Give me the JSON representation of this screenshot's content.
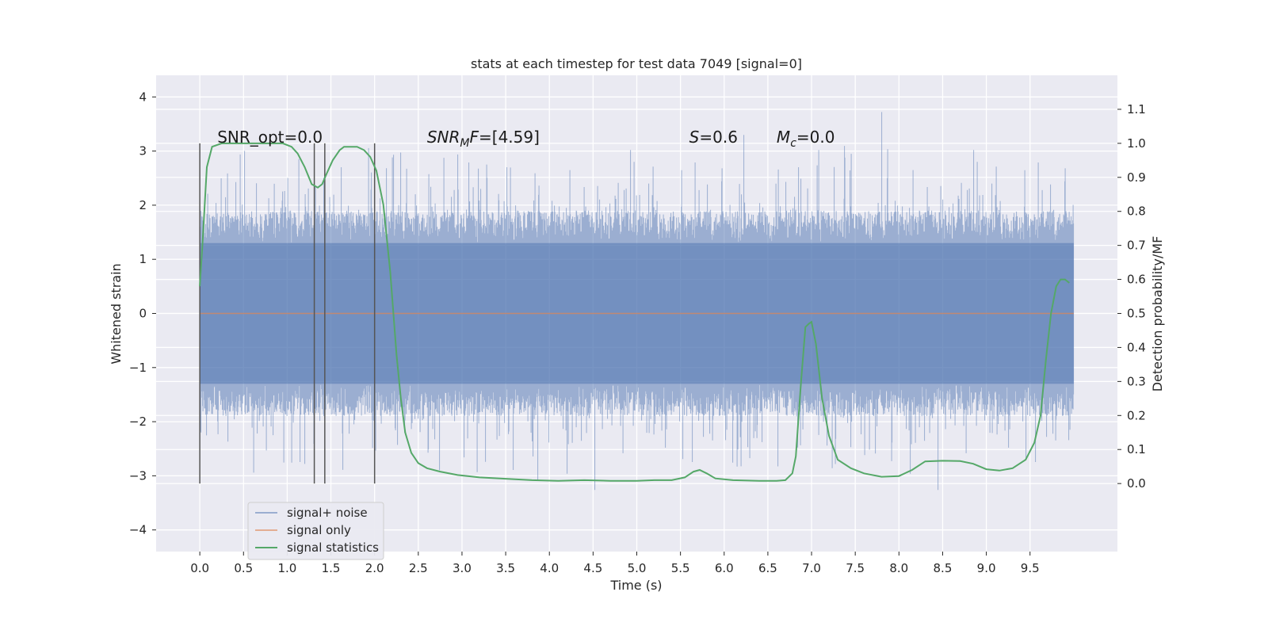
{
  "chart_data": {
    "type": "line",
    "title": "stats at each timestep for test data 7049 [signal=0]",
    "xlabel": "Time (s)",
    "ylabel_left": "Whitened strain",
    "ylabel_right": "Detection probability/MF",
    "xlim": [
      -0.5,
      10.5
    ],
    "ylim_left": [
      -4.4,
      4.4
    ],
    "ylim_right": [
      -0.2,
      1.2
    ],
    "xticks": [
      "0.0",
      "0.5",
      "1.0",
      "1.5",
      "2.0",
      "2.5",
      "3.0",
      "3.5",
      "4.0",
      "4.5",
      "5.0",
      "5.5",
      "6.0",
      "6.5",
      "7.0",
      "7.5",
      "8.0",
      "8.5",
      "9.0",
      "9.5"
    ],
    "xtick_values": [
      0.0,
      0.5,
      1.0,
      1.5,
      2.0,
      2.5,
      3.0,
      3.5,
      4.0,
      4.5,
      5.0,
      5.5,
      6.0,
      6.5,
      7.0,
      7.5,
      8.0,
      8.5,
      9.0,
      9.5
    ],
    "yticks_left": [
      "4",
      "3",
      "2",
      "1",
      "0",
      "−1",
      "−2",
      "−3",
      "−4"
    ],
    "ytick_values_left": [
      4,
      3,
      2,
      1,
      0,
      -1,
      -2,
      -3,
      -4
    ],
    "yticks_right": [
      "1.1",
      "1.0",
      "0.9",
      "0.8",
      "0.7",
      "0.6",
      "0.5",
      "0.4",
      "0.3",
      "0.2",
      "0.1",
      "0.0"
    ],
    "ytick_values_right": [
      1.1,
      1.0,
      0.9,
      0.8,
      0.7,
      0.6,
      0.5,
      0.4,
      0.3,
      0.2,
      0.1,
      0.0
    ],
    "grid": true,
    "legend_position": "lower-left",
    "series": [
      {
        "name": "signal+ noise",
        "color": "#4c72b0",
        "description": "whitened noise, approx. within [-2.5, 3] strain, 0 to 10 s",
        "x_range": [
          0.0,
          10.0
        ]
      },
      {
        "name": "signal only",
        "color": "#dd8452",
        "x": [
          0.0,
          10.0
        ],
        "values": [
          0.0,
          0.0
        ]
      },
      {
        "name": "signal statistics",
        "color": "#55a868",
        "x": [
          0.0,
          0.03,
          0.08,
          0.14,
          0.25,
          0.4,
          0.6,
          0.8,
          0.95,
          1.05,
          1.12,
          1.2,
          1.28,
          1.35,
          1.4,
          1.45,
          1.52,
          1.6,
          1.65,
          1.72,
          1.8,
          1.88,
          1.95,
          2.02,
          2.1,
          2.18,
          2.25,
          2.3,
          2.35,
          2.42,
          2.5,
          2.6,
          2.75,
          2.95,
          3.2,
          3.5,
          3.8,
          4.1,
          4.4,
          4.7,
          5.0,
          5.2,
          5.4,
          5.55,
          5.65,
          5.72,
          5.8,
          5.9,
          6.1,
          6.4,
          6.6,
          6.7,
          6.78,
          6.82,
          6.88,
          6.93,
          6.97,
          7.0,
          7.05,
          7.12,
          7.2,
          7.3,
          7.45,
          7.6,
          7.8,
          8.0,
          8.15,
          8.3,
          8.5,
          8.7,
          8.85,
          9.0,
          9.15,
          9.3,
          9.45,
          9.55,
          9.62,
          9.68,
          9.74,
          9.8,
          9.85,
          9.9,
          9.95
        ],
        "values": [
          0.58,
          0.7,
          0.93,
          0.99,
          1.0,
          1.0,
          1.0,
          1.0,
          1.0,
          0.99,
          0.97,
          0.93,
          0.88,
          0.87,
          0.88,
          0.91,
          0.95,
          0.98,
          0.99,
          0.99,
          0.99,
          0.98,
          0.96,
          0.92,
          0.82,
          0.62,
          0.38,
          0.25,
          0.15,
          0.09,
          0.06,
          0.045,
          0.035,
          0.025,
          0.018,
          0.014,
          0.01,
          0.008,
          0.01,
          0.008,
          0.008,
          0.01,
          0.01,
          0.018,
          0.035,
          0.04,
          0.03,
          0.015,
          0.01,
          0.008,
          0.008,
          0.01,
          0.03,
          0.08,
          0.3,
          0.46,
          0.47,
          0.475,
          0.41,
          0.25,
          0.14,
          0.07,
          0.045,
          0.03,
          0.02,
          0.022,
          0.04,
          0.065,
          0.067,
          0.066,
          0.058,
          0.042,
          0.038,
          0.045,
          0.07,
          0.12,
          0.2,
          0.36,
          0.5,
          0.58,
          0.6,
          0.6,
          0.59
        ]
      }
    ],
    "vertical_lines_x": [
      0.0,
      1.31,
      1.43,
      2.0
    ],
    "annotations": [
      {
        "text": "SNR_opt=0.0",
        "x": 0.2,
        "y": 1.0
      },
      {
        "text": "SNR",
        "sub": "M",
        "suffix": "F=[4.59]",
        "italic": true,
        "x": 2.6,
        "y": 1.0
      },
      {
        "text": "S",
        "suffix": "=0.6",
        "italic": true,
        "x": 5.6,
        "y": 1.0
      },
      {
        "text": "M",
        "sub": "c",
        "suffix": "=0.0",
        "italic": true,
        "x": 6.6,
        "y": 1.0
      }
    ]
  }
}
